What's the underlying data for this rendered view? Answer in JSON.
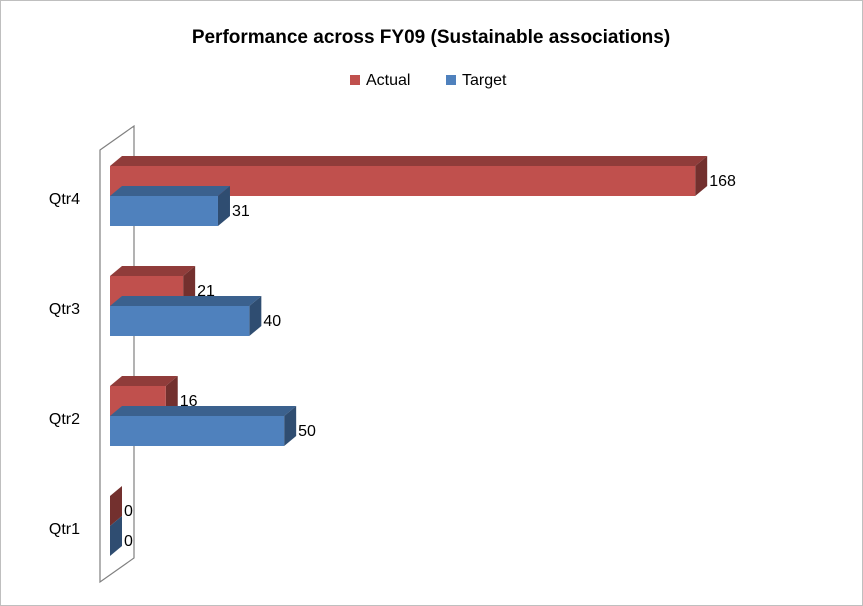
{
  "chart_data": {
    "type": "bar3d_horizontal",
    "title": "Performance  across FY09 (Sustainable associations)",
    "categories": [
      "Qtr1",
      "Qtr2",
      "Qtr3",
      "Qtr4"
    ],
    "series": [
      {
        "name": "Actual",
        "color": "#c0504d",
        "values": [
          0,
          16,
          21,
          168
        ]
      },
      {
        "name": "Target",
        "color": "#4f81bd",
        "values": [
          0,
          50,
          40,
          31
        ]
      }
    ],
    "xlim": [
      0,
      180
    ],
    "legend": "top"
  }
}
